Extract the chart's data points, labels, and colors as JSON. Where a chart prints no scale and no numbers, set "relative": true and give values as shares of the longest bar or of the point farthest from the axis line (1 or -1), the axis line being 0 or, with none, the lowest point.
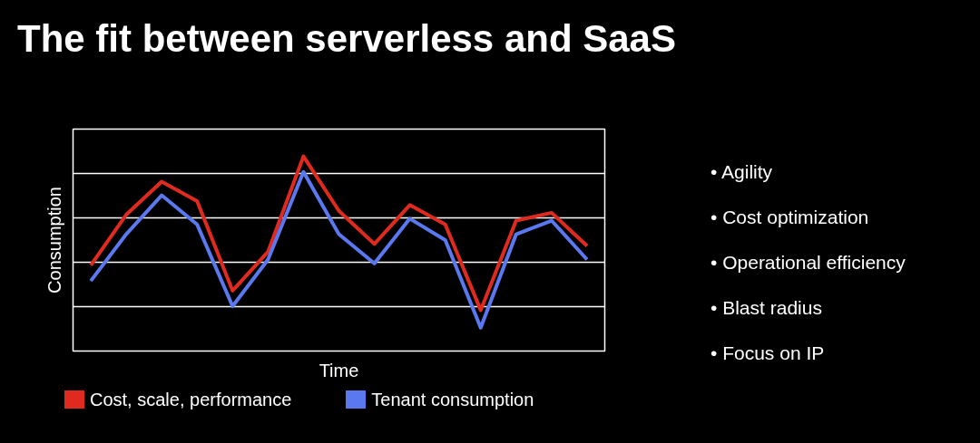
{
  "chart_data": {
    "type": "line",
    "title": "The fit between serverless and SaaS",
    "xlabel": "Time",
    "ylabel": "Consumption",
    "relative": true,
    "legend": "bottom",
    "categories": [
      null,
      null,
      null,
      null,
      null,
      null,
      null,
      null,
      null,
      null,
      null,
      null,
      null,
      null,
      null
    ],
    "series": [
      {
        "name": "Cost, scale, performance",
        "color": "#e02a1f",
        "values": [
          0.44,
          0.7,
          0.87,
          0.77,
          0.31,
          0.51,
          1.0,
          0.72,
          0.55,
          0.75,
          0.65,
          0.21,
          0.67,
          0.71,
          0.54
        ]
      },
      {
        "name": "Tenant consumption",
        "color": "#5a78f0",
        "values": [
          0.36,
          0.6,
          0.8,
          0.65,
          0.23,
          0.47,
          0.92,
          0.6,
          0.45,
          0.68,
          0.57,
          0.12,
          0.6,
          0.67,
          0.47
        ]
      }
    ],
    "grid": "y",
    "annotations": [
      "• Agility",
      "• Cost optimization",
      "• Operational efficiency",
      "• Blast radius",
      "• Focus on IP"
    ]
  }
}
